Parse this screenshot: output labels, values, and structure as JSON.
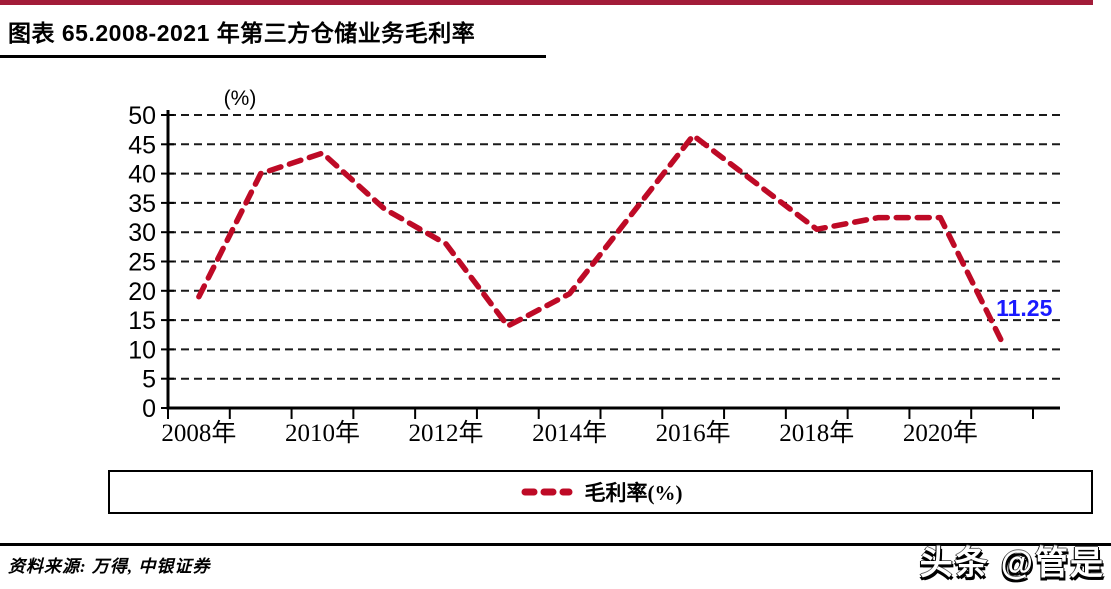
{
  "page": {
    "title": "图表 65.2008-2021 年第三方仓储业务毛利率",
    "source": "资料来源: 万得, 中银证券",
    "watermark": "头条 @管是"
  },
  "colors": {
    "accent_bar": "#A21C39",
    "line": "#BE0A26",
    "annotation": "#1a1aff",
    "grid": "#1a1a1a",
    "axis": "#000000"
  },
  "chart_data": {
    "type": "line",
    "title": "图表 65.2008-2021 年第三方仓储业务毛利率",
    "unit_label": "(%)",
    "x": [
      "2008",
      "2009",
      "2010",
      "2011",
      "2012",
      "2013",
      "2014",
      "2015",
      "2016",
      "2017",
      "2018",
      "2019",
      "2020",
      "2021"
    ],
    "series": [
      {
        "name": "毛利率(%)",
        "values": [
          19,
          40,
          43.5,
          34,
          28,
          14,
          19.5,
          33,
          46.5,
          38.5,
          30.5,
          32.5,
          32.5,
          11.25
        ],
        "style": "dashed"
      }
    ],
    "xtick_labels": [
      "2008年",
      "2010年",
      "2012年",
      "2014年",
      "2016年",
      "2018年",
      "2020年"
    ],
    "ylim": [
      0,
      50
    ],
    "ytick_step": 5,
    "grid": "dashed-horizontal",
    "legend": {
      "label": "毛利率(%)",
      "position": "bottom"
    },
    "annotation": {
      "text": "11.25",
      "x_index": 13,
      "value": 11.25
    }
  }
}
